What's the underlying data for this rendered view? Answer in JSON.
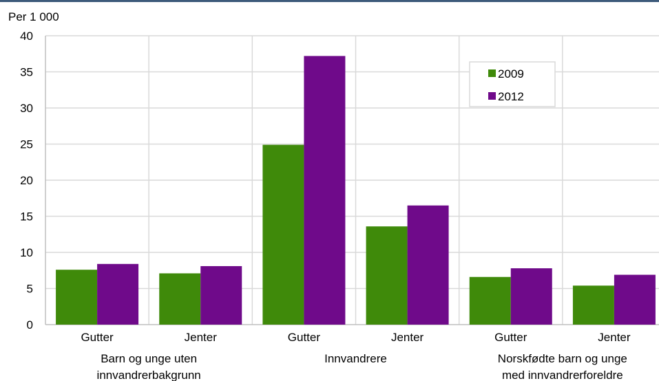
{
  "chart_data": {
    "type": "bar",
    "unit_label": "Per 1 000",
    "categories": [
      "Gutter",
      "Jenter",
      "Gutter",
      "Jenter",
      "Gutter",
      "Jenter"
    ],
    "groups": [
      {
        "label_lines": [
          "Barn og unge uten",
          "innvandrerbakgrunn"
        ]
      },
      {
        "label_lines": [
          "Innvandrere"
        ]
      },
      {
        "label_lines": [
          "Norskfødte barn og unge",
          "med innvandrerforeldre"
        ]
      }
    ],
    "series": [
      {
        "name": "2009",
        "color": "#3f8a0a",
        "values": [
          7.6,
          7.1,
          24.9,
          13.6,
          6.6,
          5.4
        ]
      },
      {
        "name": "2012",
        "color": "#6f0a8a",
        "values": [
          8.4,
          8.1,
          37.2,
          16.5,
          7.8,
          6.9
        ]
      }
    ],
    "ylim": [
      0,
      40
    ],
    "yticks": [
      0,
      5,
      10,
      15,
      20,
      25,
      30,
      35,
      40
    ],
    "grid": true,
    "legend_position": "top-right"
  }
}
